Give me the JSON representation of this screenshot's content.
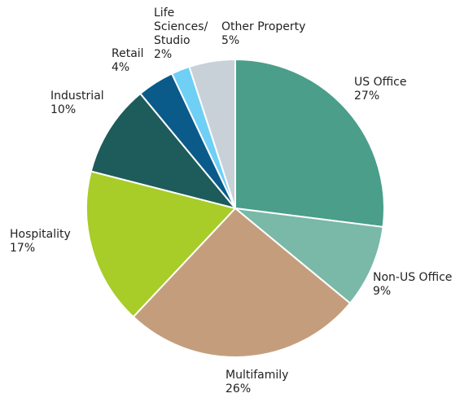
{
  "chart_data": {
    "type": "pie",
    "categories": [
      "US Office",
      "Non-US Office",
      "Multifamily",
      "Hospitality",
      "Industrial",
      "Retail",
      "Life Sciences/ Studio",
      "Other Property"
    ],
    "values": [
      27,
      9,
      26,
      17,
      10,
      4,
      2,
      5
    ],
    "value_labels": [
      "27%",
      "9%",
      "26%",
      "17%",
      "10%",
      "4%",
      "2%",
      "5%"
    ],
    "colors": [
      "#4a9e8a",
      "#7ab8a8",
      "#c49e7c",
      "#a8cc28",
      "#1d5c5a",
      "#0a5b8a",
      "#6fcff5",
      "#c8d0d8"
    ]
  }
}
